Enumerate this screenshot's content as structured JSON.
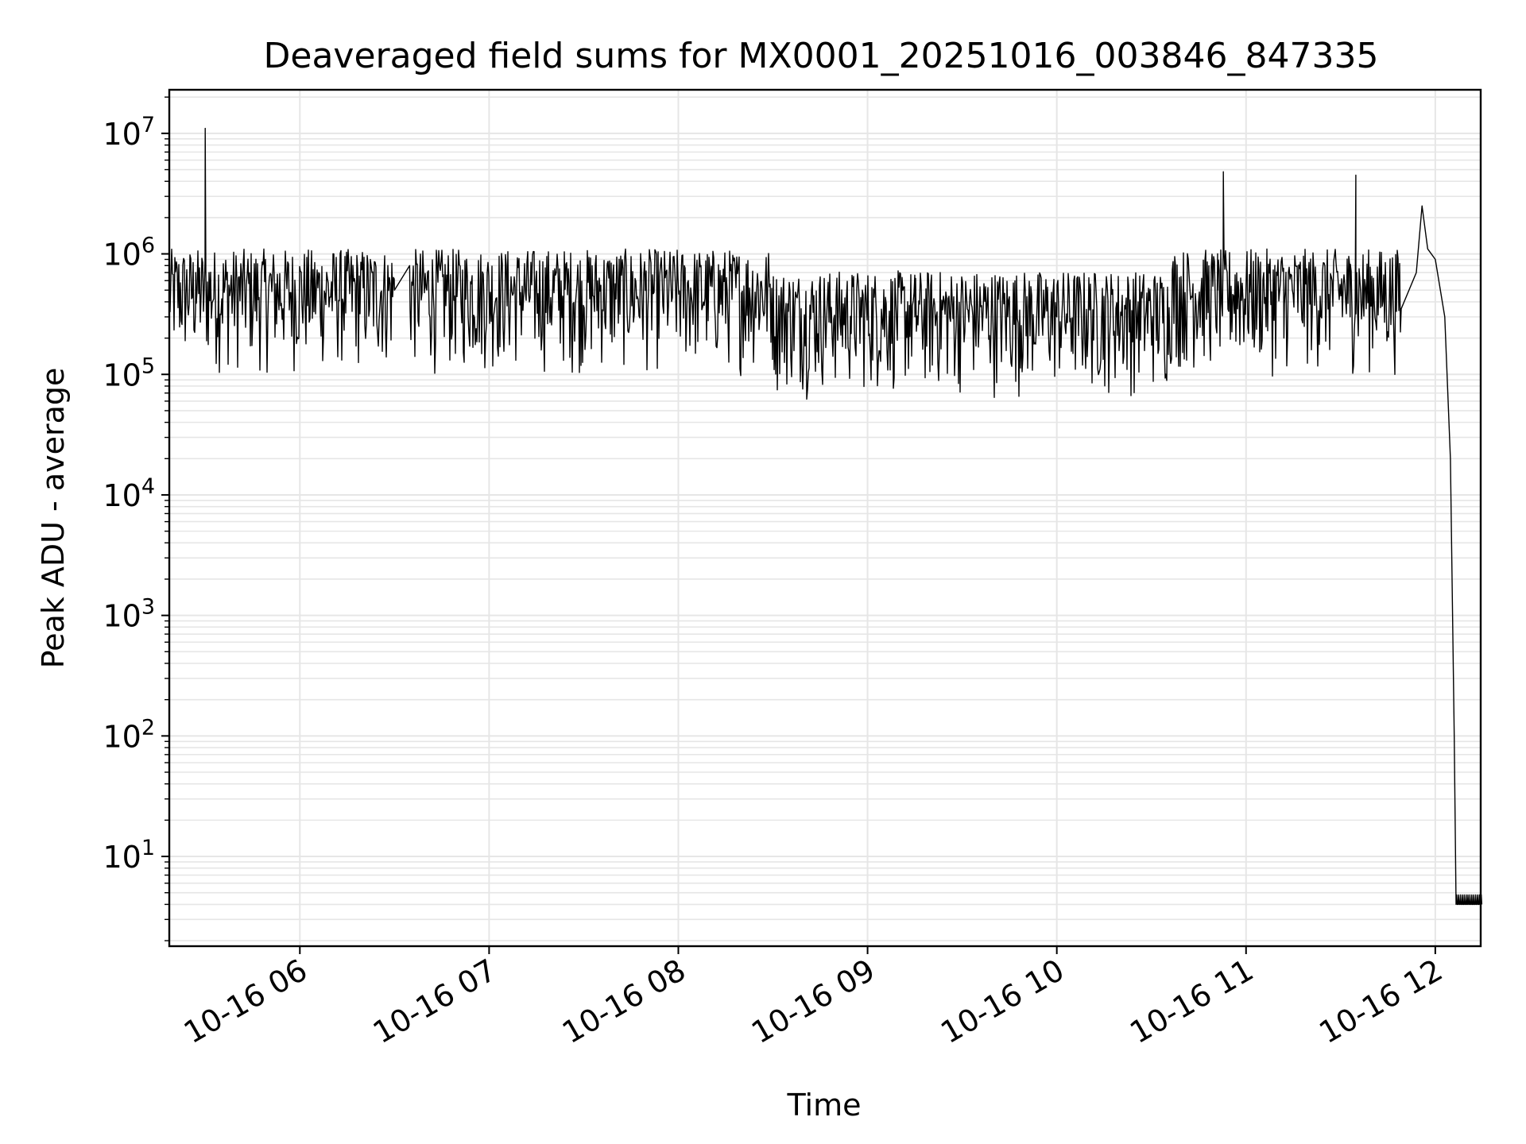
{
  "chart_data": {
    "type": "line",
    "title": "Deaveraged field sums for MX0001_20251016_003846_847335",
    "xlabel": "Time",
    "ylabel": "Peak ADU - average",
    "yscale": "log",
    "ylim": [
      1.8,
      23000000
    ],
    "xlim_hours": [
      5.31,
      12.24
    ],
    "x_tick_labels": [
      "10-16 06",
      "10-16 07",
      "10-16 08",
      "10-16 09",
      "10-16 10",
      "10-16 11",
      "10-16 12"
    ],
    "x_tick_hours": [
      6,
      7,
      8,
      9,
      10,
      11,
      12
    ],
    "y_ticks": [
      {
        "value": 10,
        "base": "10",
        "exp": "1"
      },
      {
        "value": 100,
        "base": "10",
        "exp": "2"
      },
      {
        "value": 1000,
        "base": "10",
        "exp": "3"
      },
      {
        "value": 10000,
        "base": "10",
        "exp": "4"
      },
      {
        "value": 100000,
        "base": "10",
        "exp": "5"
      },
      {
        "value": 1000000,
        "base": "10",
        "exp": "6"
      },
      {
        "value": 10000000,
        "base": "10",
        "exp": "7"
      }
    ],
    "grid": true,
    "series": [
      {
        "name": "Peak ADU - average",
        "color": "#000000",
        "baseline_band": [
          90000,
          1100000
        ],
        "points": [
          [
            5.31,
            600000
          ],
          [
            5.45,
            700000
          ],
          [
            5.5,
            11000000
          ],
          [
            5.52,
            700000
          ],
          [
            6.5,
            500000
          ],
          [
            6.58,
            800000
          ],
          [
            9.25,
            300000
          ],
          [
            10.0,
            300000
          ],
          [
            10.85,
            500000
          ],
          [
            10.88,
            4800000
          ],
          [
            10.92,
            400000
          ],
          [
            11.2,
            200000
          ],
          [
            11.55,
            300000
          ],
          [
            11.58,
            4500000
          ],
          [
            11.62,
            400000
          ],
          [
            11.82,
            350000
          ],
          [
            11.9,
            700000
          ],
          [
            11.93,
            2500000
          ],
          [
            11.96,
            1100000
          ],
          [
            12.0,
            900000
          ],
          [
            12.05,
            300000
          ],
          [
            12.08,
            20000
          ],
          [
            12.1,
            100
          ],
          [
            12.11,
            4
          ],
          [
            12.24,
            4
          ]
        ]
      }
    ]
  }
}
